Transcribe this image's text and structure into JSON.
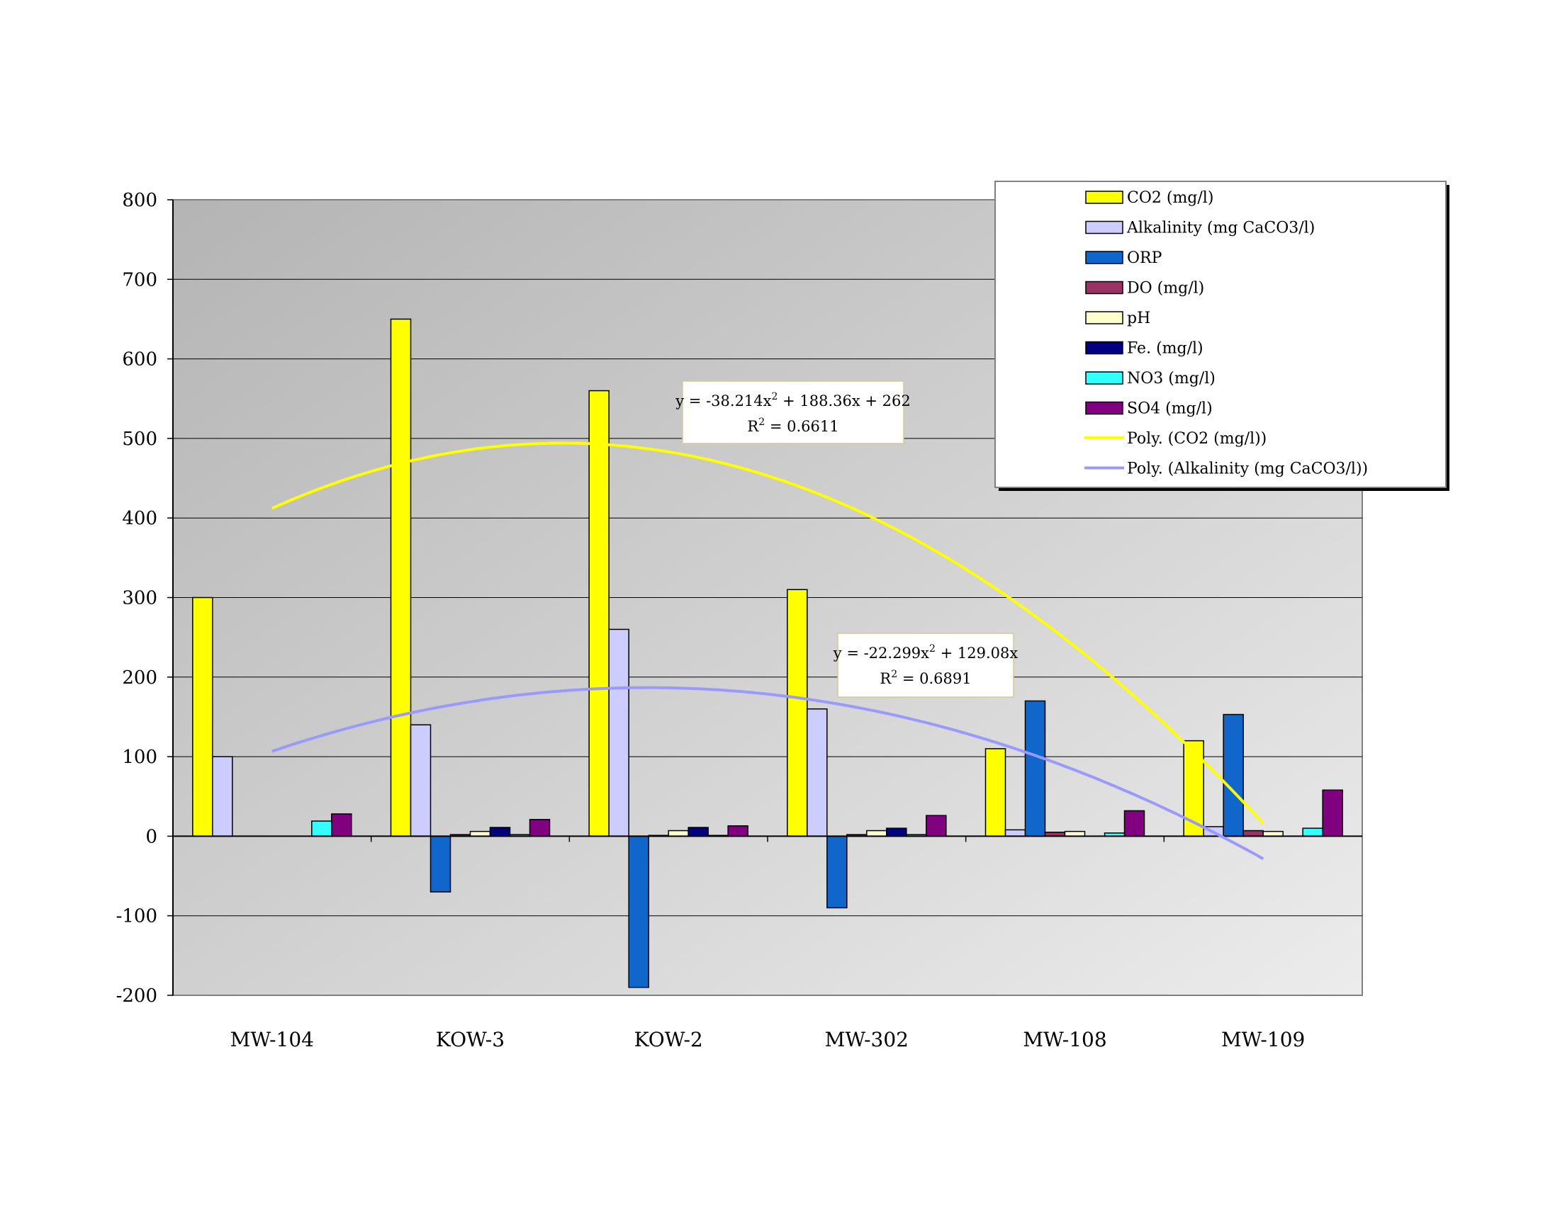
{
  "chart_data": {
    "type": "bar",
    "categories": [
      "MW-104",
      "KOW-3",
      "KOW-2",
      "MW-302",
      "MW-108",
      "MW-109"
    ],
    "ylim": [
      -200,
      800
    ],
    "yticks": [
      800,
      700,
      600,
      500,
      400,
      300,
      200,
      100,
      0,
      -100,
      -200
    ],
    "grid": true,
    "legend_position": "top-right",
    "series": [
      {
        "name": "CO2 (mg/l)",
        "color": "#ffff00",
        "values": [
          300,
          650,
          560,
          310,
          110,
          120
        ]
      },
      {
        "name": "Alkalinity (mg CaCO3/l)",
        "color": "#ccccff",
        "values": [
          100,
          140,
          260,
          160,
          8,
          12
        ]
      },
      {
        "name": "ORP",
        "color": "#1166cc",
        "values": [
          0,
          -70,
          -190,
          -90,
          170,
          153
        ]
      },
      {
        "name": "DO (mg/l)",
        "color": "#993366",
        "values": [
          0,
          2,
          1,
          2,
          5,
          7
        ]
      },
      {
        "name": "pH",
        "color": "#ffffcc",
        "values": [
          0,
          6,
          7,
          7,
          6,
          6
        ]
      },
      {
        "name": "Fe. (mg/l)",
        "color": "#000080",
        "values": [
          0,
          11,
          11,
          10,
          0,
          0
        ]
      },
      {
        "name": "NO3 (mg/l)",
        "color": "#33ffff",
        "values": [
          19,
          2,
          1,
          2,
          4,
          10
        ]
      },
      {
        "name": "SO4 (mg/l)",
        "color": "#800080",
        "values": [
          28,
          21,
          13,
          26,
          32,
          58
        ]
      }
    ],
    "trendlines": [
      {
        "name": "Poly. (CO2 (mg/l))",
        "color": "#ffff00",
        "coefficients": [
          -38.214,
          188.36,
          262
        ],
        "equation_prefix": "y = -38.214x",
        "equation_suffix": " + 188.36x + 262",
        "r2_prefix": "R",
        "r2_suffix": " = 0.6611",
        "superscript": "2"
      },
      {
        "name": "Poly. (Alkalinity (mg CaCO3/l))",
        "color": "#9999ff",
        "coefficients": [
          -22.299,
          129.08,
          0
        ],
        "equation_prefix": "y = -22.299x",
        "equation_suffix": " + 129.08x",
        "r2_prefix": "R",
        "r2_suffix": " = 0.6891",
        "superscript": "2"
      }
    ]
  }
}
